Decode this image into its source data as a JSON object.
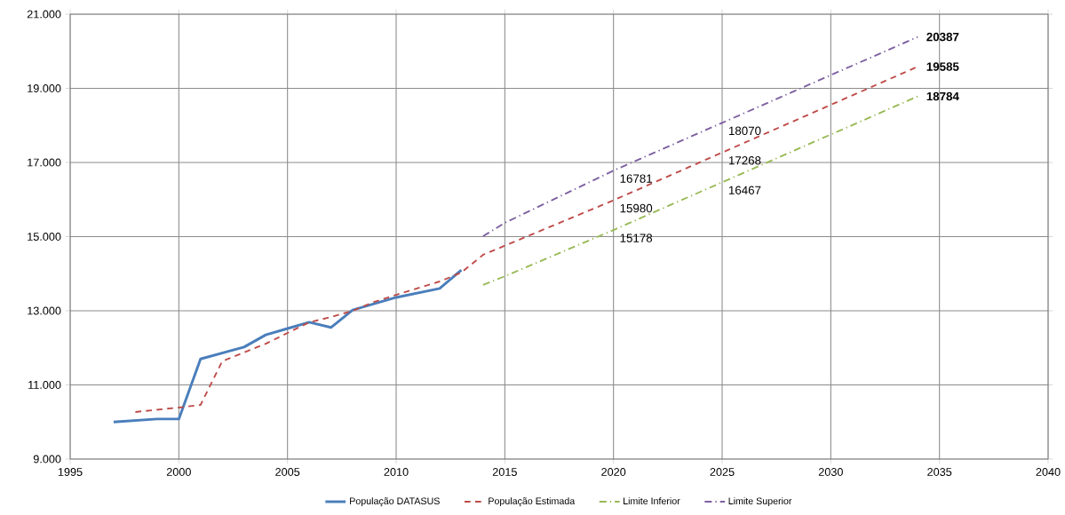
{
  "chart_data": {
    "type": "line",
    "xlim": [
      1995,
      2040
    ],
    "xticks": [
      1995,
      2000,
      2005,
      2010,
      2015,
      2020,
      2025,
      2030,
      2035,
      2040
    ],
    "ylim": [
      9000,
      21000
    ],
    "yticks": [
      {
        "value": 9000,
        "label": "9.000"
      },
      {
        "value": 11000,
        "label": "11.000"
      },
      {
        "value": 13000,
        "label": "13.000"
      },
      {
        "value": 15000,
        "label": "15.000"
      },
      {
        "value": 17000,
        "label": "17.000"
      },
      {
        "value": 19000,
        "label": "19.000"
      },
      {
        "value": 21000,
        "label": "21.000"
      }
    ],
    "grid": true,
    "legend": "bottom",
    "marker": "none",
    "series": [
      {
        "name": "População DATASUS",
        "color": "#4a7ebb",
        "line_style": "solid",
        "x": [
          1997,
          1999,
          2000,
          2001,
          2003,
          2004,
          2005,
          2006,
          2007,
          2008,
          2009,
          2010,
          2012,
          2013
        ],
        "values": [
          10000,
          10080,
          10080,
          11700,
          12020,
          12350,
          12520,
          12690,
          12550,
          13020,
          13190,
          13360,
          13600,
          14100
        ]
      },
      {
        "name": "População Estimada",
        "color": "#be4b48",
        "line_style": "dashed",
        "x": [
          1998,
          2000,
          2001,
          2002,
          2004,
          2005,
          2006,
          2007,
          2008,
          2009,
          2010,
          2012,
          2013,
          2014,
          2020,
          2025,
          2034
        ],
        "values": [
          10270,
          10390,
          10460,
          11640,
          12110,
          12400,
          12690,
          12830,
          13000,
          13240,
          13430,
          13790,
          14030,
          14510,
          15980,
          17268,
          19585
        ],
        "value_labels": [
          null,
          null,
          null,
          null,
          null,
          null,
          null,
          null,
          null,
          null,
          null,
          null,
          null,
          null,
          "15980",
          "17268",
          "19585"
        ]
      },
      {
        "name": "Limite Inferior",
        "color": "#98b954",
        "line_style": "dashdot",
        "x": [
          2014,
          2015,
          2020,
          2025,
          2034
        ],
        "values": [
          13700,
          13930,
          15178,
          16467,
          18784
        ],
        "value_labels": [
          null,
          null,
          "15178",
          "16467",
          "18784"
        ]
      },
      {
        "name": "Limite Superior",
        "color": "#7d60a0",
        "line_style": "dashdot",
        "x": [
          2014,
          2015,
          2020,
          2025,
          2034
        ],
        "values": [
          15010,
          15370,
          16781,
          18070,
          20387
        ],
        "value_labels": [
          null,
          null,
          "16781",
          "18070",
          "20387"
        ]
      }
    ]
  }
}
